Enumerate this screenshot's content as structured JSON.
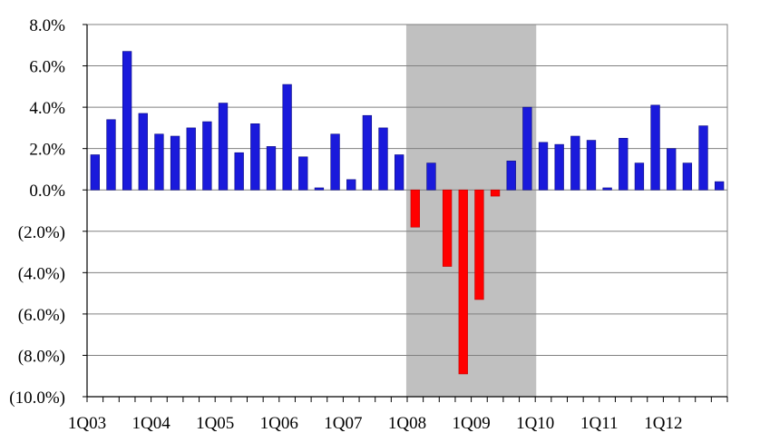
{
  "chart_data": {
    "type": "bar",
    "title": "",
    "xlabel": "",
    "ylabel": "",
    "ylim": [
      -10,
      8
    ],
    "y_ticks": [
      8,
      6,
      4,
      2,
      0,
      -2,
      -4,
      -6,
      -8,
      -10
    ],
    "y_tick_labels": [
      "8.0%",
      "6.0%",
      "4.0%",
      "2.0%",
      "0.0%",
      "(2.0%)",
      "(4.0%)",
      "(6.0%)",
      "(8.0%)",
      "(10.0%)"
    ],
    "grid": true,
    "legend": "none",
    "colors": {
      "positive": "#1a1adb",
      "negative": "#ff0000",
      "shade": "#c0c0c0",
      "grid": "#808080"
    },
    "categories": [
      "1Q03",
      "2Q03",
      "3Q03",
      "4Q03",
      "1Q04",
      "2Q04",
      "3Q04",
      "4Q04",
      "1Q05",
      "2Q05",
      "3Q05",
      "4Q05",
      "1Q06",
      "2Q06",
      "3Q06",
      "4Q06",
      "1Q07",
      "2Q07",
      "3Q07",
      "4Q07",
      "1Q08",
      "2Q08",
      "3Q08",
      "4Q08",
      "1Q09",
      "2Q09",
      "3Q09",
      "4Q09",
      "1Q10",
      "2Q10",
      "3Q10",
      "4Q10",
      "1Q11",
      "2Q11",
      "3Q11",
      "4Q11",
      "1Q12",
      "2Q12",
      "3Q12",
      "4Q12"
    ],
    "x_tick_labels": [
      "1Q03",
      "1Q04",
      "1Q05",
      "1Q06",
      "1Q07",
      "1Q08",
      "1Q09",
      "1Q10",
      "1Q11",
      "1Q12"
    ],
    "values": [
      1.7,
      3.4,
      6.7,
      3.7,
      2.7,
      2.6,
      3.0,
      3.3,
      4.2,
      1.8,
      3.2,
      2.1,
      5.1,
      1.6,
      0.1,
      2.7,
      0.5,
      3.6,
      3.0,
      1.7,
      -1.8,
      1.3,
      -3.7,
      -8.9,
      -5.3,
      -0.3,
      1.4,
      4.0,
      2.3,
      2.2,
      2.6,
      2.4,
      0.1,
      2.5,
      1.3,
      4.1,
      2.0,
      1.3,
      3.1,
      0.4
    ],
    "shaded_range": [
      "1Q08",
      "4Q09"
    ]
  }
}
